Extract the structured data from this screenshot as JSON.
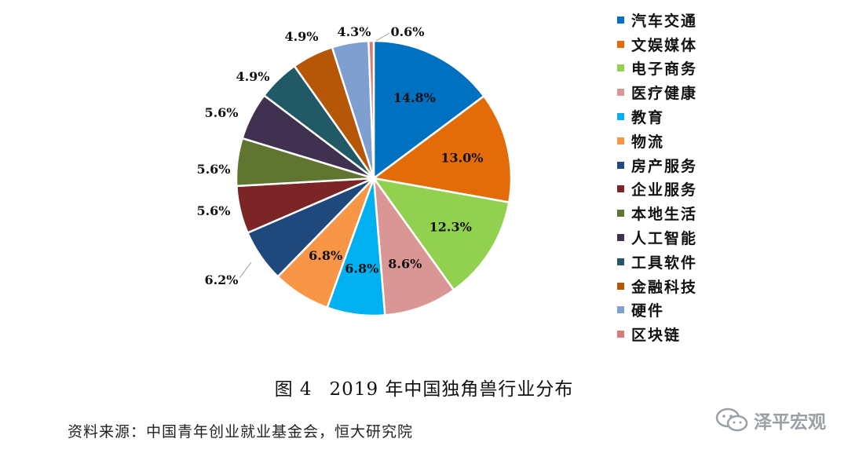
{
  "chart_data": {
    "type": "pie",
    "categories": [
      "汽车交通",
      "文娱媒体",
      "电子商务",
      "医疗健康",
      "教育",
      "物流",
      "房产服务",
      "企业服务",
      "本地生活",
      "人工智能",
      "工具软件",
      "金融科技",
      "硬件",
      "区块链"
    ],
    "values": [
      14.8,
      13.0,
      12.3,
      8.6,
      6.8,
      6.8,
      6.2,
      5.6,
      5.6,
      5.6,
      4.9,
      4.9,
      4.3,
      0.6
    ],
    "labels": [
      "14.8%",
      "13.0%",
      "12.3%",
      "8.6%",
      "6.8%",
      "6.8%",
      "6.2%",
      "5.6%",
      "5.6%",
      "5.6%",
      "4.9%",
      "4.9%",
      "4.3%",
      "0.6%"
    ],
    "colors": [
      "#0070c0",
      "#e36c09",
      "#92d050",
      "#d99694",
      "#00b0f0",
      "#f79646",
      "#1f497d",
      "#7b2527",
      "#5f7530",
      "#403151",
      "#215967",
      "#b65708",
      "#7f9fd0",
      "#d8797a"
    ],
    "legend_position": "right"
  },
  "caption": {
    "figure_no": "图 4",
    "text": "2019 年中国独角兽行业分布"
  },
  "source_text": "资料来源：中国青年创业就业基金会，恒大研究院",
  "watermark_text": "泽平宏观"
}
